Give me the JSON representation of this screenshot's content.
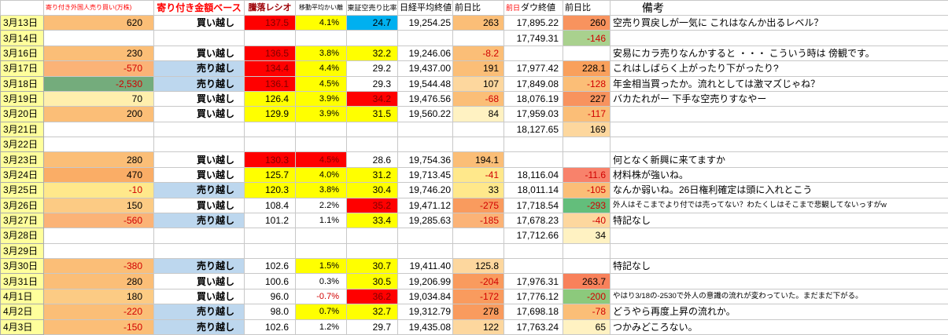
{
  "app": {
    "type": "spreadsheet"
  },
  "colors": {
    "date_bg": "#FFFF9C",
    "sell_cell_bg": "#BDD7EE",
    "red_cell": "#FF0000",
    "yellow_cell": "#FFFF00",
    "cyan_cell": "#00B0F0",
    "green_cell": "#63BE7B",
    "negative_text": "#D10000",
    "header_accent": "#FF0000"
  },
  "labels": {
    "buy": "買い越し",
    "sell": "売り越し"
  },
  "columns": [
    {
      "key": "date",
      "label": ""
    },
    {
      "key": "fgn",
      "label": "寄り付き外国人売り買い(万株)"
    },
    {
      "key": "stance",
      "label": "寄り付き金額ベース"
    },
    {
      "key": "ratio",
      "label": "騰落レシオ"
    },
    {
      "key": "ma",
      "label": "移動平均かい離"
    },
    {
      "key": "short",
      "label": "東証空売り比率"
    },
    {
      "key": "nikkei",
      "label": "日経平均終値"
    },
    {
      "key": "nk_chg",
      "label": "前日比"
    },
    {
      "key": "dow",
      "label_red": "前日",
      "label": "ダウ終値"
    },
    {
      "key": "dow_chg",
      "label": "前日比"
    },
    {
      "key": "remark",
      "label": "備考"
    }
  ],
  "rows": [
    {
      "date": "3月13日",
      "cells": {
        "fgn": {
          "v": "620",
          "bg": "#FBBE77"
        },
        "stance": {
          "v": "買い越し"
        },
        "ratio": {
          "v": "137.5",
          "bg": "#FF0000"
        },
        "ma": {
          "v": "4.1%",
          "bg": "#FFFF00"
        },
        "short": {
          "v": "24.7",
          "bg": "#00B0F0"
        },
        "nikkei": {
          "v": "19,254.25"
        },
        "nk_chg": {
          "v": "263",
          "bg": "#FBBE77"
        },
        "dow": {
          "v": "17,895.22"
        },
        "dow_chg": {
          "v": "260",
          "bg": "#F8935E"
        },
        "remark": {
          "v": "空売り買戻しが一気に これはなんか出るレベル？"
        }
      }
    },
    {
      "date": "3月14日",
      "cells": {
        "dow": {
          "v": "17,749.31"
        },
        "dow_chg": {
          "v": "-146",
          "bg": "#A9D18E"
        }
      }
    },
    {
      "date": "3月16日",
      "cells": {
        "fgn": {
          "v": "230",
          "bg": "#FBBE77"
        },
        "stance": {
          "v": "買い越し"
        },
        "ratio": {
          "v": "136.5",
          "bg": "#FF0000"
        },
        "ma": {
          "v": "3.8%",
          "bg": "#FFFF00"
        },
        "short": {
          "v": "32.2",
          "bg": "#FFFF00"
        },
        "nikkei": {
          "v": "19,246.06"
        },
        "nk_chg": {
          "v": "-8.2",
          "bg": "#FBBE77"
        },
        "remark": {
          "v": "安易にカラ売りなんかすると ・・・ こういう時は 傍観です。"
        }
      }
    },
    {
      "date": "3月17日",
      "cells": {
        "fgn": {
          "v": "-570",
          "bg": "#FBB377"
        },
        "stance": {
          "v": "売り越し"
        },
        "ratio": {
          "v": "134.4",
          "bg": "#FF0000"
        },
        "ma": {
          "v": "4.4%",
          "bg": "#FFFF00"
        },
        "short": {
          "v": "29.2"
        },
        "nikkei": {
          "v": "19,437.00"
        },
        "nk_chg": {
          "v": "191",
          "bg": "#FBBE77"
        },
        "dow": {
          "v": "17,977.42"
        },
        "dow_chg": {
          "v": "228.1",
          "bg": "#F9A05C"
        },
        "remark": {
          "v": "これはしばらく上がったり下がったり?"
        }
      }
    },
    {
      "date": "3月18日",
      "cells": {
        "fgn": {
          "v": "-2,530",
          "bg": "#74AC7C"
        },
        "stance": {
          "v": "売り越し"
        },
        "ratio": {
          "v": "136.1",
          "bg": "#FF0000"
        },
        "ma": {
          "v": "4.5%",
          "bg": "#FFFF00"
        },
        "short": {
          "v": "29.3"
        },
        "nikkei": {
          "v": "19,544.48"
        },
        "nk_chg": {
          "v": "107",
          "bg": "#FDD79E"
        },
        "dow": {
          "v": "17,849.08"
        },
        "dow_chg": {
          "v": "-128",
          "bg": "#FBBE77"
        },
        "remark": {
          "v": "年金相当買ったか。流れとしては激マズじゃね？"
        }
      }
    },
    {
      "date": "3月19日",
      "cells": {
        "fgn": {
          "v": "70",
          "bg": "#FFEFAD"
        },
        "stance": {
          "v": "買い越し"
        },
        "ratio": {
          "v": "126.4",
          "bg": "#FFFF00"
        },
        "ma": {
          "v": "3.9%",
          "bg": "#FFFF00"
        },
        "short": {
          "v": "34.2",
          "bg": "#FF0000"
        },
        "nikkei": {
          "v": "19,476.56"
        },
        "nk_chg": {
          "v": "-68",
          "bg": "#FBBE77"
        },
        "dow": {
          "v": "18,076.19"
        },
        "dow_chg": {
          "v": "227",
          "bg": "#F8935E"
        },
        "remark": {
          "v": "バカたれがー 下手な空売りすなやー"
        }
      }
    },
    {
      "date": "3月20日",
      "cells": {
        "fgn": {
          "v": "200",
          "bg": "#FBBE77"
        },
        "stance": {
          "v": "買い越し"
        },
        "ratio": {
          "v": "129.9",
          "bg": "#FFFF00"
        },
        "ma": {
          "v": "3.9%",
          "bg": "#FFFF00"
        },
        "short": {
          "v": "31.5",
          "bg": "#FFFF00"
        },
        "nikkei": {
          "v": "19,560.22"
        },
        "nk_chg": {
          "v": "84",
          "bg": "#FFF2C2"
        },
        "dow": {
          "v": "17,959.03"
        },
        "dow_chg": {
          "v": "-117",
          "bg": "#FBBE77"
        }
      }
    },
    {
      "date": "3月21日",
      "cells": {
        "dow": {
          "v": "18,127.65"
        },
        "dow_chg": {
          "v": "169",
          "bg": "#FDD79E"
        }
      }
    },
    {
      "date": "3月22日",
      "cells": {}
    },
    {
      "date": "3月23日",
      "cells": {
        "fgn": {
          "v": "280",
          "bg": "#FBBE77"
        },
        "stance": {
          "v": "買い越し"
        },
        "ratio": {
          "v": "130.3",
          "bg": "#FF0000"
        },
        "ma": {
          "v": "4.5%",
          "bg": "#FF0000"
        },
        "short": {
          "v": "28.6"
        },
        "nikkei": {
          "v": "19,754.36"
        },
        "nk_chg": {
          "v": "194.1",
          "bg": "#FBBE77"
        },
        "remark": {
          "v": "何となく新興に来てますか"
        }
      }
    },
    {
      "date": "3月24日",
      "cells": {
        "fgn": {
          "v": "470",
          "bg": "#FAAD66"
        },
        "stance": {
          "v": "買い越し"
        },
        "ratio": {
          "v": "125.7",
          "bg": "#FFFF00"
        },
        "ma": {
          "v": "4.0%",
          "bg": "#FFFF00"
        },
        "short": {
          "v": "31.2",
          "bg": "#FFFF00"
        },
        "nikkei": {
          "v": "19,713.45"
        },
        "nk_chg": {
          "v": "-41",
          "bg": "#FFE88B"
        },
        "dow": {
          "v": "18,116.04"
        },
        "dow_chg": {
          "v": "-11.6",
          "bg": "#F8826B"
        },
        "remark": {
          "v": "材料株が強いね。"
        }
      }
    },
    {
      "date": "3月25日",
      "cells": {
        "fgn": {
          "v": "-10",
          "bg": "#FFE88B"
        },
        "stance": {
          "v": "売り越し"
        },
        "ratio": {
          "v": "120.3",
          "bg": "#FFFF00"
        },
        "ma": {
          "v": "3.8%",
          "bg": "#FFFF00"
        },
        "short": {
          "v": "30.4",
          "bg": "#FFFF00"
        },
        "nikkei": {
          "v": "19,746.20"
        },
        "nk_chg": {
          "v": "33",
          "bg": "#FFE88B"
        },
        "dow": {
          "v": "18,011.14"
        },
        "dow_chg": {
          "v": "-105",
          "bg": "#FBBE77"
        },
        "remark": {
          "v": "なんか弱いね。26日権利確定は頭に入れとこう"
        }
      }
    },
    {
      "date": "3月26日",
      "cells": {
        "fgn": {
          "v": "150",
          "bg": "#FCCB84"
        },
        "stance": {
          "v": "買い越し"
        },
        "ratio": {
          "v": "108.4"
        },
        "ma": {
          "v": "2.2%"
        },
        "short": {
          "v": "35.2",
          "bg": "#FF0000"
        },
        "nikkei": {
          "v": "19,471.12"
        },
        "nk_chg": {
          "v": "-275",
          "bg": "#F99B5E"
        },
        "dow": {
          "v": "17,718.54"
        },
        "dow_chg": {
          "v": "-293",
          "bg": "#63BE7B"
        },
        "remark": {
          "v": "外人はそこまでより付では売ってない？わたくしはそこまで悲観してないっすがw",
          "small": true
        }
      }
    },
    {
      "date": "3月27日",
      "cells": {
        "fgn": {
          "v": "-560",
          "bg": "#FBB377"
        },
        "stance": {
          "v": "売り越し"
        },
        "ratio": {
          "v": "101.2"
        },
        "ma": {
          "v": "1.1%"
        },
        "short": {
          "v": "33.4",
          "bg": "#FFFF00"
        },
        "nikkei": {
          "v": "19,285.63"
        },
        "nk_chg": {
          "v": "-185",
          "bg": "#FBB377"
        },
        "dow": {
          "v": "17,678.23"
        },
        "dow_chg": {
          "v": "-40",
          "bg": "#FDD79E"
        },
        "remark": {
          "v": "特記なし"
        }
      }
    },
    {
      "date": "3月28日",
      "cells": {
        "dow": {
          "v": "17,712.66"
        },
        "dow_chg": {
          "v": "34",
          "bg": "#FFF2C2"
        }
      }
    },
    {
      "date": "3月29日",
      "cells": {}
    },
    {
      "date": "3月30日",
      "cells": {
        "fgn": {
          "v": "-380",
          "bg": "#FBBE77"
        },
        "stance": {
          "v": "売り越し"
        },
        "ratio": {
          "v": "102.6"
        },
        "ma": {
          "v": "1.5%",
          "bg": "#FFFF00"
        },
        "short": {
          "v": "30.7",
          "bg": "#FFFF00"
        },
        "nikkei": {
          "v": "19,411.40"
        },
        "nk_chg": {
          "v": "125.8",
          "bg": "#FDD79E"
        },
        "remark": {
          "v": "特記なし"
        }
      }
    },
    {
      "date": "3月31日",
      "cells": {
        "fgn": {
          "v": "280",
          "bg": "#FBBE77"
        },
        "stance": {
          "v": "買い越し"
        },
        "ratio": {
          "v": "100.6"
        },
        "ma": {
          "v": "0.3%"
        },
        "short": {
          "v": "30.5",
          "bg": "#FFFF00"
        },
        "nikkei": {
          "v": "19,206.99"
        },
        "nk_chg": {
          "v": "-204",
          "bg": "#F99B5E"
        },
        "dow": {
          "v": "17,976.31"
        },
        "dow_chg": {
          "v": "263.7",
          "bg": "#F8815B"
        }
      }
    },
    {
      "date": "4月1日",
      "cells": {
        "fgn": {
          "v": "180",
          "bg": "#FCCB84"
        },
        "stance": {
          "v": "買い越し"
        },
        "ratio": {
          "v": "96.0"
        },
        "ma": {
          "v": "-0.7%"
        },
        "short": {
          "v": "36.2",
          "bg": "#FF0000"
        },
        "nikkei": {
          "v": "19,034.84"
        },
        "nk_chg": {
          "v": "-172",
          "bg": "#F99B5E"
        },
        "dow": {
          "v": "17,776.12"
        },
        "dow_chg": {
          "v": "-200",
          "bg": "#8CC97C"
        },
        "remark": {
          "v": "やはり3/18の-2530で外人の意識の流れが変わっていた。まだまだ下がる。",
          "small": true
        }
      }
    },
    {
      "date": "4月2日",
      "cells": {
        "fgn": {
          "v": "-220",
          "bg": "#FBBE77"
        },
        "stance": {
          "v": "売り越し"
        },
        "ratio": {
          "v": "98.0"
        },
        "ma": {
          "v": "0.7%",
          "bg": "#FFFF00"
        },
        "short": {
          "v": "32.7",
          "bg": "#FFFF00"
        },
        "nikkei": {
          "v": "19,312.79"
        },
        "nk_chg": {
          "v": "278",
          "bg": "#F99B5E"
        },
        "dow": {
          "v": "17,698.18"
        },
        "dow_chg": {
          "v": "-78",
          "bg": "#FBBE77"
        },
        "remark": {
          "v": "どうやら再度上昇の流れか。"
        }
      }
    },
    {
      "date": "4月3日",
      "cells": {
        "fgn": {
          "v": "-150",
          "bg": "#FBBE77"
        },
        "stance": {
          "v": "売り越し"
        },
        "ratio": {
          "v": "102.6"
        },
        "ma": {
          "v": "1.2%"
        },
        "short": {
          "v": "29.7"
        },
        "nikkei": {
          "v": "19,435.08"
        },
        "nk_chg": {
          "v": "122",
          "bg": "#FDD79E"
        },
        "dow": {
          "v": "17,763.24"
        },
        "dow_chg": {
          "v": "65",
          "bg": "#FFF2C2"
        },
        "remark": {
          "v": "つかみどころない。"
        }
      }
    }
  ]
}
